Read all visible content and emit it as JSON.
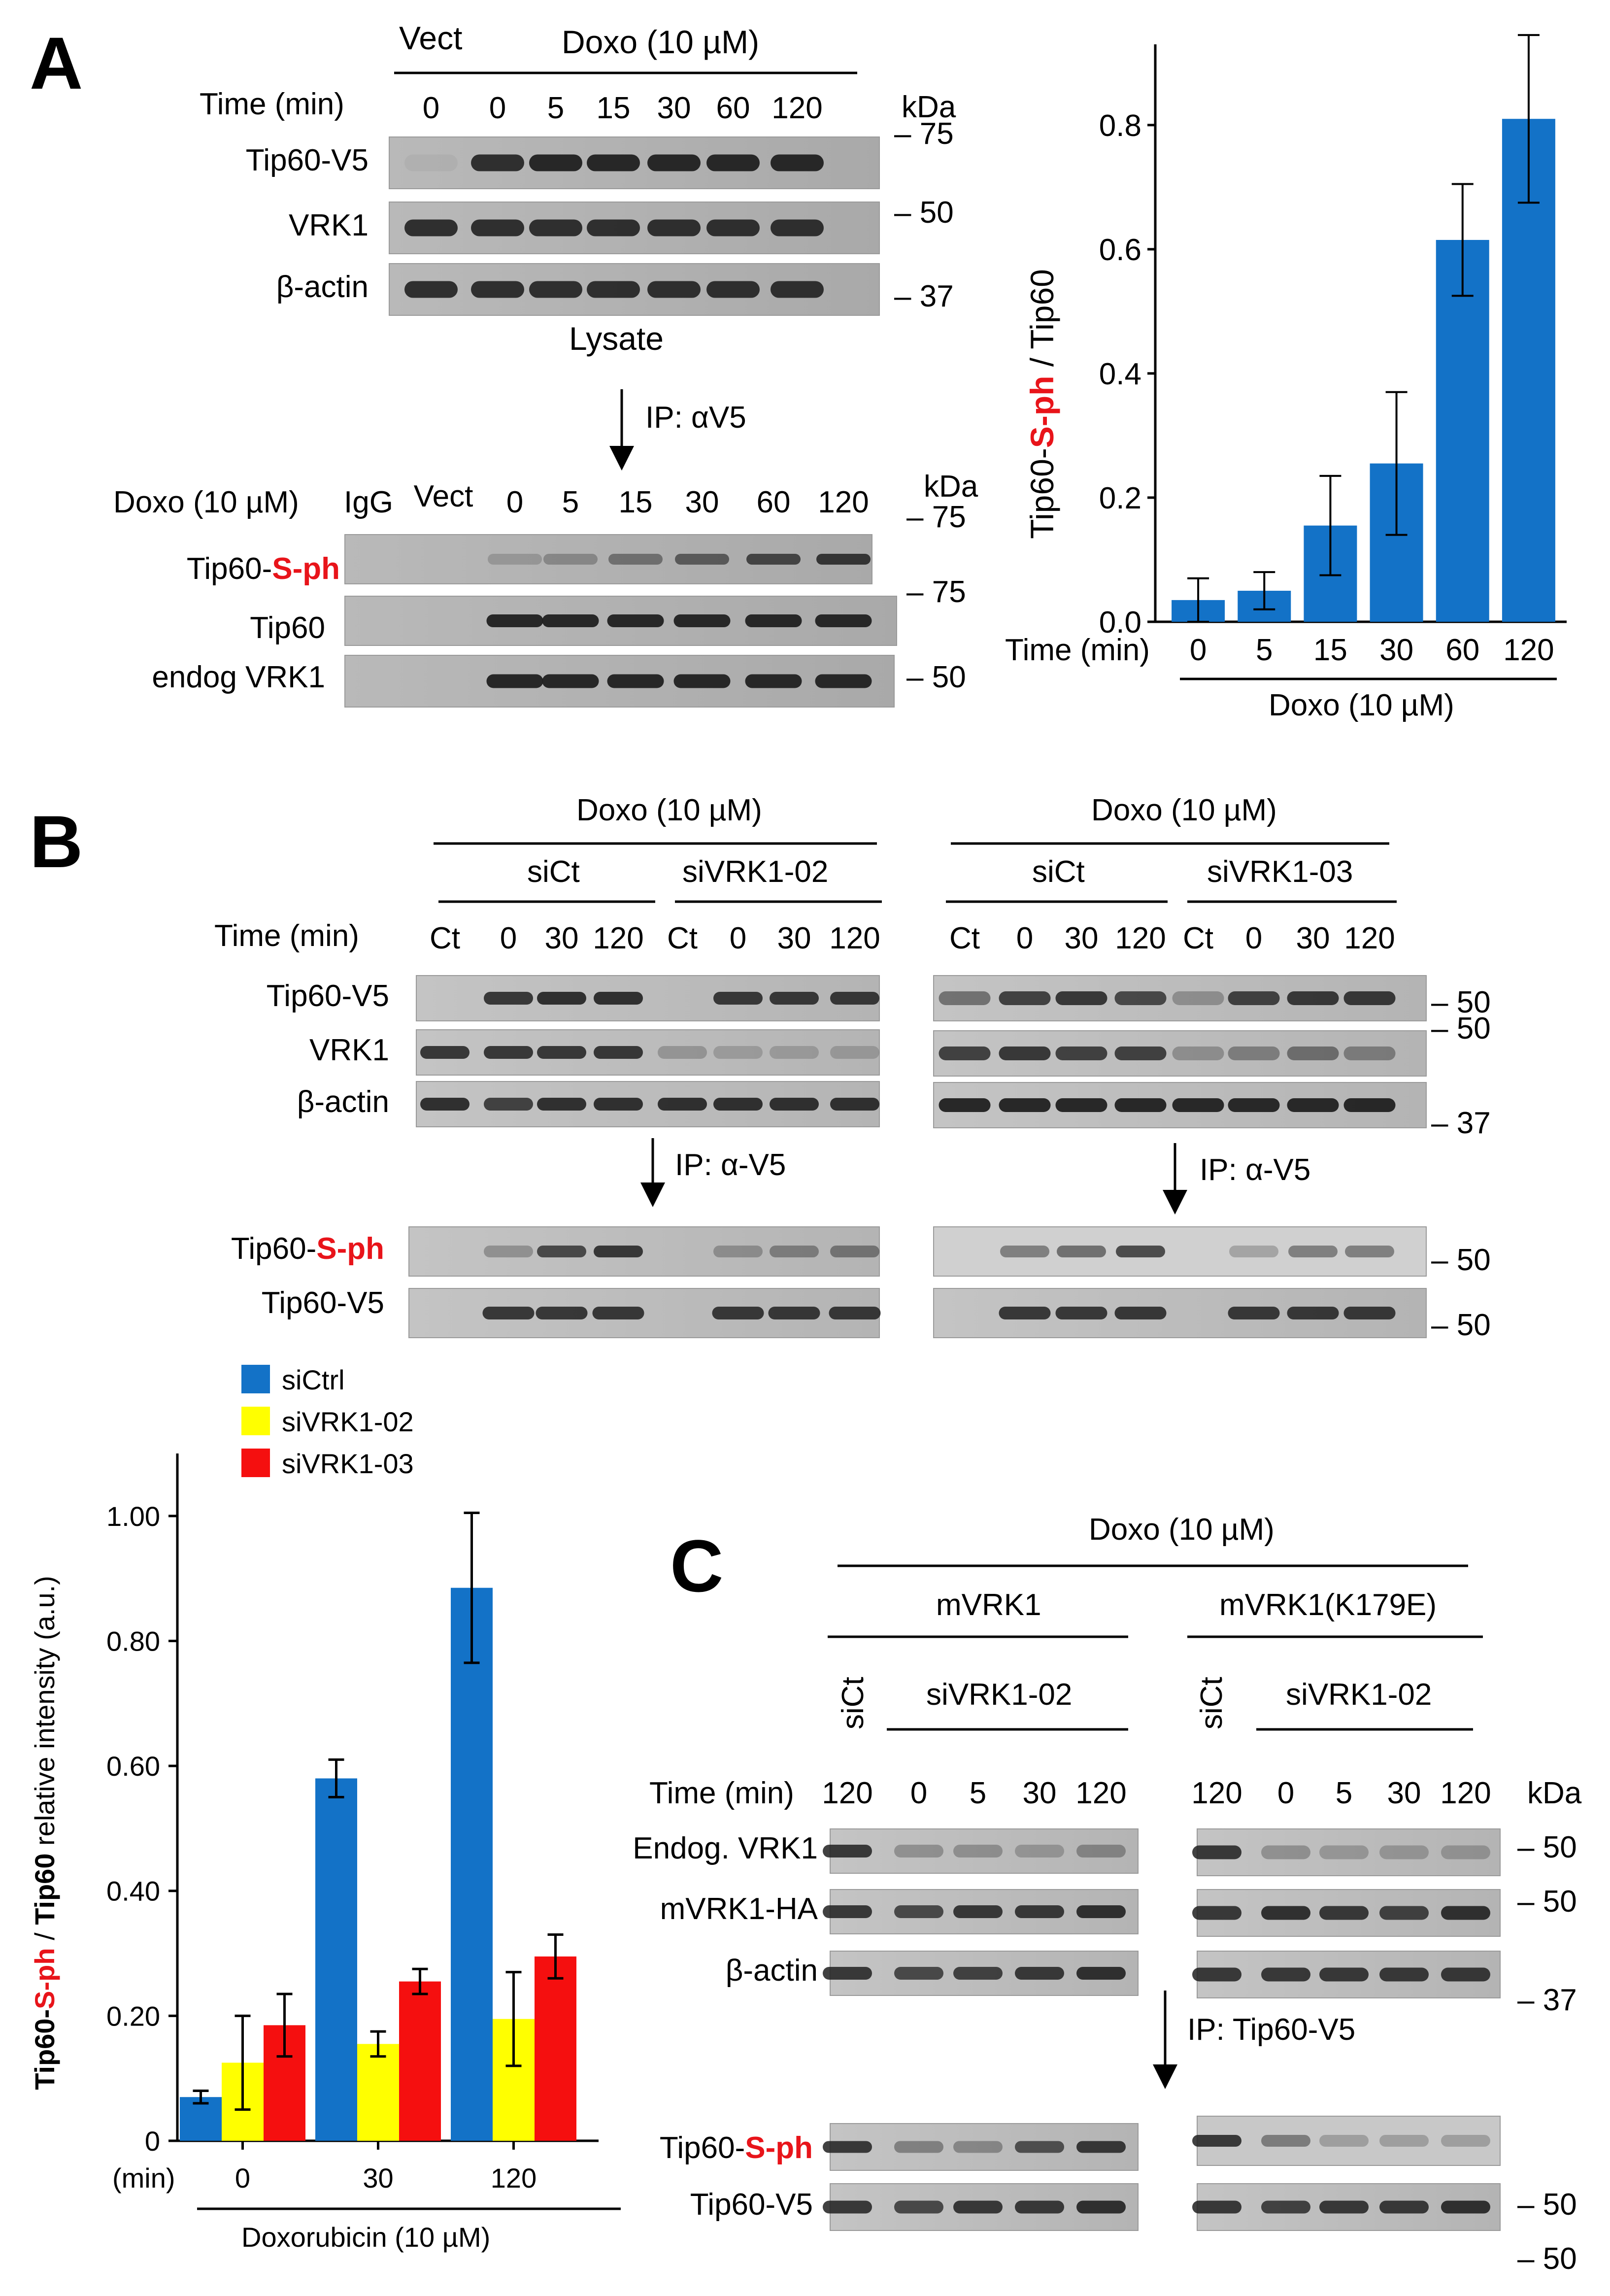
{
  "panelA": {
    "letter": "A",
    "vect": "Vect",
    "doxo": "Doxo (10 µM)",
    "time_label": "Time  (min)",
    "time_values": [
      "0",
      "0",
      "5",
      "15",
      "30",
      "60",
      "120"
    ],
    "kda": "kDa",
    "rows": [
      "Tip60-V5",
      "VRK1",
      "β-actin"
    ],
    "markers": [
      "– 75",
      "– 50",
      "– 37"
    ],
    "lysate": "Lysate",
    "ip": "IP:  αV5",
    "ip_header_label": "Doxo (10 µM)",
    "ip_lanes": [
      "IgG",
      "Vect",
      "0",
      "5",
      "15",
      "30",
      "60",
      "120"
    ],
    "ip_rows": {
      "sph_prefix": "Tip60-",
      "sph_suffix": "S-ph",
      "tip60": "Tip60",
      "endog": "endog VRK1"
    },
    "ip_markers": [
      "– 75",
      "– 75",
      "– 50"
    ]
  },
  "chartA": {
    "ylabel_prefix": "Tip60-",
    "ylabel_red": "S-ph",
    "ylabel_suffix": " / Tip60",
    "time_label": "Time  (min)",
    "doxo": "Doxo (10 µM)",
    "color": "#1372c7",
    "chart_data": {
      "type": "bar",
      "categories": [
        "0",
        "5",
        "15",
        "30",
        "60",
        "120"
      ],
      "values": [
        0.035,
        0.05,
        0.155,
        0.255,
        0.615,
        0.81
      ],
      "errors": [
        0.035,
        0.03,
        0.08,
        0.115,
        0.09,
        0.135
      ],
      "ylim": [
        0,
        0.93
      ],
      "yticks": [
        "0.0",
        "0.2",
        "0.4",
        "0.6",
        "0.8"
      ],
      "ytick_values": [
        0,
        0.2,
        0.4,
        0.6,
        0.8
      ]
    }
  },
  "panelB": {
    "letter": "B",
    "doxo_left": "Doxo (10 µM)",
    "doxo_right": "Doxo (10 µM)",
    "sict_left": "siCt",
    "sivrk_left": "siVRK1-02",
    "sict_right": "siCt",
    "sivrk_right": "siVRK1-03",
    "time_label": "Time  (min)",
    "lanes": [
      "Ct",
      "0",
      "30",
      "120",
      "Ct",
      "0",
      "30",
      "120"
    ],
    "rows": [
      "Tip60-V5",
      "VRK1",
      "β-actin"
    ],
    "markers": [
      "– 50",
      "– 50",
      "– 37"
    ],
    "ip_left": "IP:  α-V5",
    "ip_right": "IP:  α-V5",
    "ip_rows": {
      "sph_prefix": "Tip60-",
      "sph_suffix": "S-ph",
      "v5": "Tip60-V5"
    },
    "ip_markers": [
      "– 50",
      "– 50"
    ]
  },
  "chartB": {
    "ylabel_a": "Tip60-",
    "ylabel_b": "S-ph",
    "ylabel_c": " / ",
    "ylabel_d": "Tip60",
    "ylabel_e": " relative intensity (a.u.)",
    "xunit": "(min)",
    "xlabel": "Doxorubicin (10 µM)",
    "chart_data": {
      "type": "bar",
      "categories": [
        "0",
        "30",
        "120"
      ],
      "series": [
        {
          "name": "siCtrl",
          "color": "#1372c7",
          "values": [
            0.07,
            0.58,
            0.885
          ],
          "errors": [
            0.01,
            0.03,
            0.12
          ]
        },
        {
          "name": "siVRK1-02",
          "color": "#ffff00",
          "values": [
            0.125,
            0.155,
            0.195
          ],
          "errors": [
            0.075,
            0.02,
            0.075
          ]
        },
        {
          "name": "siVRK1-03",
          "color": "#f50f0f",
          "values": [
            0.185,
            0.255,
            0.295
          ],
          "errors": [
            0.05,
            0.02,
            0.035
          ]
        }
      ],
      "ylim": [
        0,
        1.1
      ],
      "yticks": [
        "0",
        "0.20",
        "0.40",
        "0.60",
        "0.80",
        "1.00"
      ],
      "ytick_values": [
        0,
        0.2,
        0.4,
        0.6,
        0.8,
        1.0
      ]
    }
  },
  "panelC": {
    "letter": "C",
    "doxo": "Doxo (10 µM)",
    "mvrk1": "mVRK1",
    "mvrk1_mut": "mVRK1(K179E)",
    "sict_left": "siCt",
    "sivrk_left": "siVRK1-02",
    "sict_right": "siCt",
    "sivrk_right": "siVRK1-02",
    "time_label": "Time  (min)",
    "lanes_left": [
      "120",
      "0",
      "5",
      "30",
      "120"
    ],
    "lanes_right": [
      "120",
      "0",
      "5",
      "30",
      "120"
    ],
    "kda": "kDa",
    "rows": [
      "Endog. VRK1",
      "mVRK1-HA",
      "β-actin"
    ],
    "markers": [
      "– 50",
      "– 50",
      "– 37"
    ],
    "ip": "IP:  Tip60-V5",
    "ip_rows": {
      "sph_prefix": "Tip60-",
      "sph_suffix": "S-ph",
      "v5": "Tip60-V5"
    },
    "ip_markers": [
      "– 50",
      "– 50"
    ]
  }
}
